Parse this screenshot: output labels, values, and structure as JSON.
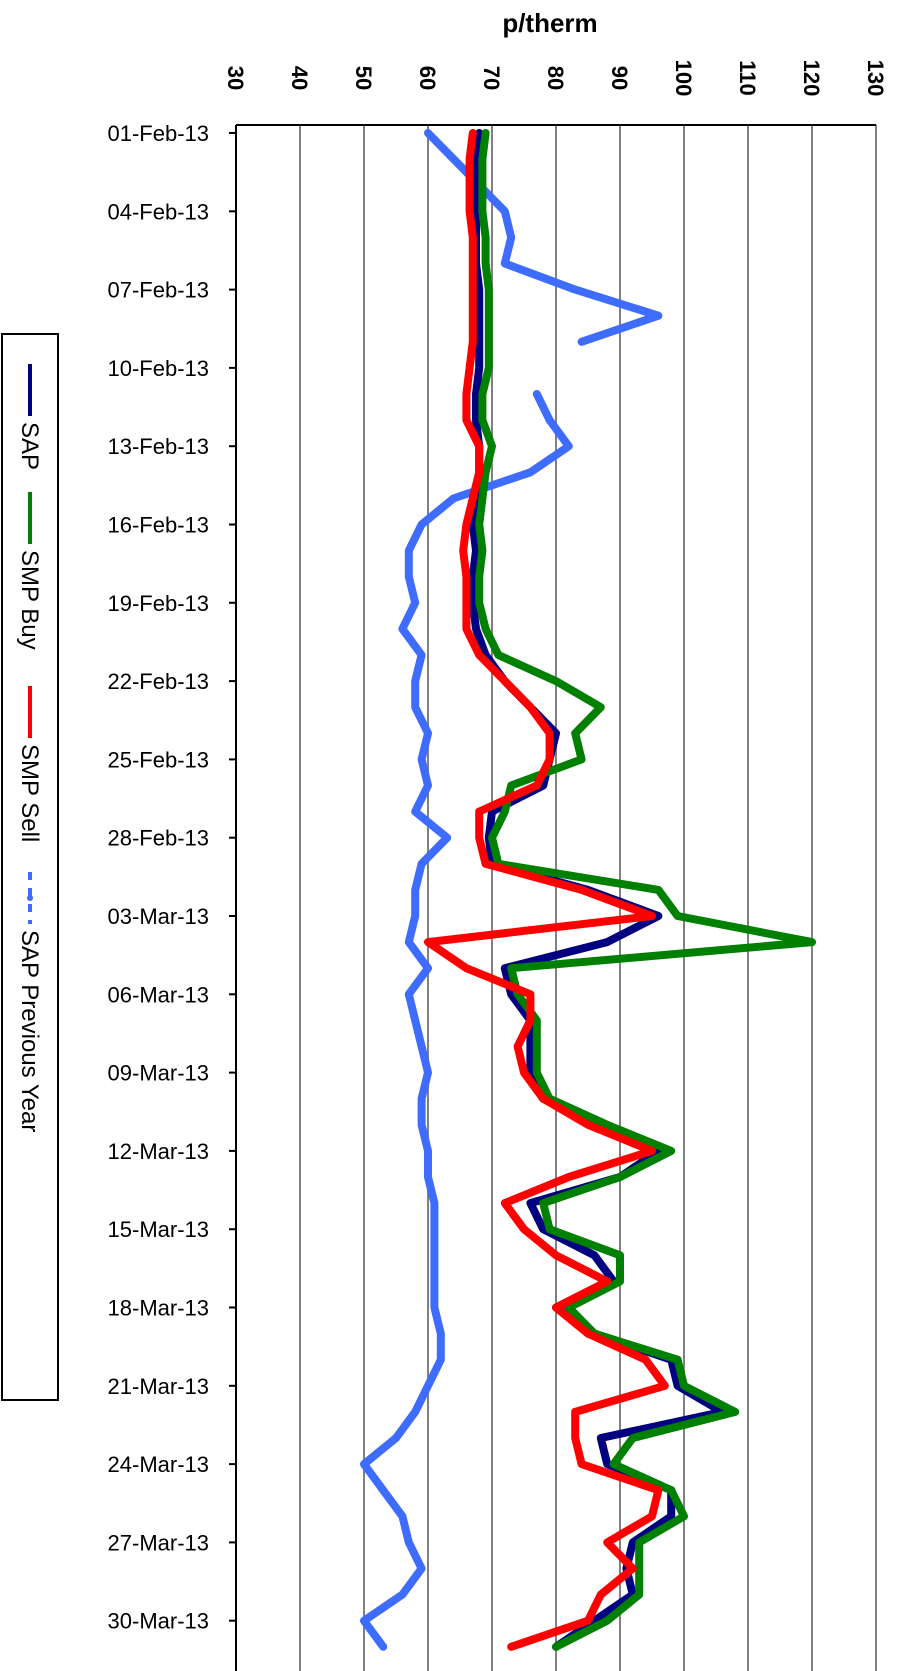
{
  "chart_data": {
    "type": "line",
    "title": "",
    "xlabel": "p/therm",
    "ylabel": "",
    "orientation": "rotated-90",
    "value_axis": {
      "min": 30,
      "max": 130,
      "step": 10,
      "tick_labels": [
        "30",
        "40",
        "50",
        "60",
        "70",
        "80",
        "90",
        "100",
        "110",
        "120",
        "130"
      ]
    },
    "date_tick_labels": [
      "01-Feb-13",
      "04-Feb-13",
      "07-Feb-13",
      "10-Feb-13",
      "13-Feb-13",
      "16-Feb-13",
      "19-Feb-13",
      "22-Feb-13",
      "25-Feb-13",
      "28-Feb-13",
      "03-Mar-13",
      "06-Mar-13",
      "09-Mar-13",
      "12-Mar-13",
      "15-Mar-13",
      "18-Mar-13",
      "21-Mar-13",
      "24-Mar-13",
      "27-Mar-13",
      "30-Mar-13"
    ],
    "grid": true,
    "legend_position": "left, rotated",
    "x": [
      "01-Feb-13",
      "02-Feb-13",
      "03-Feb-13",
      "04-Feb-13",
      "05-Feb-13",
      "06-Feb-13",
      "07-Feb-13",
      "08-Feb-13",
      "09-Feb-13",
      "10-Feb-13",
      "11-Feb-13",
      "12-Feb-13",
      "13-Feb-13",
      "14-Feb-13",
      "15-Feb-13",
      "16-Feb-13",
      "17-Feb-13",
      "18-Feb-13",
      "19-Feb-13",
      "20-Feb-13",
      "21-Feb-13",
      "22-Feb-13",
      "23-Feb-13",
      "24-Feb-13",
      "25-Feb-13",
      "26-Feb-13",
      "27-Feb-13",
      "28-Feb-13",
      "01-Mar-13",
      "02-Mar-13",
      "03-Mar-13",
      "04-Mar-13",
      "05-Mar-13",
      "06-Mar-13",
      "07-Mar-13",
      "08-Mar-13",
      "09-Mar-13",
      "10-Mar-13",
      "11-Mar-13",
      "12-Mar-13",
      "13-Mar-13",
      "14-Mar-13",
      "15-Mar-13",
      "16-Mar-13",
      "17-Mar-13",
      "18-Mar-13",
      "19-Mar-13",
      "20-Mar-13",
      "21-Mar-13",
      "22-Mar-13",
      "23-Mar-13",
      "24-Mar-13",
      "25-Mar-13",
      "26-Mar-13",
      "27-Mar-13",
      "28-Mar-13",
      "29-Mar-13",
      "30-Mar-13",
      "31-Mar-13"
    ],
    "series": [
      {
        "name": "SAP",
        "color": "#000080",
        "dashed": false,
        "values": [
          68,
          67.5,
          67.5,
          67.5,
          67.5,
          67.5,
          68,
          68,
          68,
          68,
          67.5,
          67.5,
          68,
          68,
          67.5,
          67,
          67.5,
          67,
          67,
          67.5,
          69,
          72,
          76,
          80,
          79,
          78,
          70,
          69.5,
          70,
          85,
          96,
          88,
          72,
          73,
          76,
          76,
          76,
          78,
          87,
          96,
          90,
          76,
          78,
          86,
          89,
          80,
          86,
          98,
          99,
          106,
          87,
          88,
          98,
          98,
          92,
          91,
          92,
          86,
          80
        ]
      },
      {
        "name": "SMP Buy",
        "color": "#008000",
        "dashed": false,
        "values": [
          69,
          68.5,
          68.5,
          68.5,
          69,
          69,
          69.5,
          69.5,
          69.5,
          69.5,
          68.5,
          68.5,
          70,
          69,
          68.5,
          68,
          68.5,
          68,
          68,
          69,
          71,
          80,
          87,
          83,
          84,
          73,
          72,
          70,
          71,
          96,
          99,
          120,
          73,
          74,
          77,
          77,
          77,
          79,
          88,
          98,
          90,
          78,
          79,
          90,
          90,
          82,
          86,
          99,
          100,
          108,
          92,
          89,
          98,
          100,
          93,
          93,
          93,
          88,
          80
        ]
      },
      {
        "name": "SMP Sell",
        "color": "#ff0000",
        "dashed": false,
        "values": [
          67,
          66.5,
          66.5,
          66.5,
          67,
          67,
          67,
          67,
          67,
          66.5,
          66,
          66,
          68,
          68,
          67,
          66,
          65.5,
          66,
          66,
          66,
          68,
          72,
          76,
          79,
          79,
          77,
          68,
          68,
          69,
          84,
          95,
          60,
          66,
          76,
          76,
          74,
          75,
          78,
          85,
          95,
          82,
          72,
          75,
          80,
          88,
          80,
          85,
          94,
          97,
          83,
          83,
          84,
          96,
          95,
          88,
          92,
          87,
          85,
          73
        ]
      },
      {
        "name": "SAP Previous Year",
        "color": "#3d6cff",
        "dashed": false,
        "values": [
          60,
          64,
          68,
          72,
          73,
          72,
          83,
          96,
          84,
          null,
          77,
          79,
          82,
          76,
          64,
          59,
          57,
          57,
          58,
          56,
          59,
          58,
          58,
          60,
          59,
          60,
          58,
          63,
          59,
          58,
          58,
          57,
          60,
          57,
          58,
          59,
          60,
          59,
          59,
          60,
          60,
          61,
          61,
          61,
          61,
          61,
          62,
          62,
          60,
          58,
          55,
          50,
          53,
          56,
          57,
          59,
          56,
          50,
          53
        ]
      }
    ]
  }
}
